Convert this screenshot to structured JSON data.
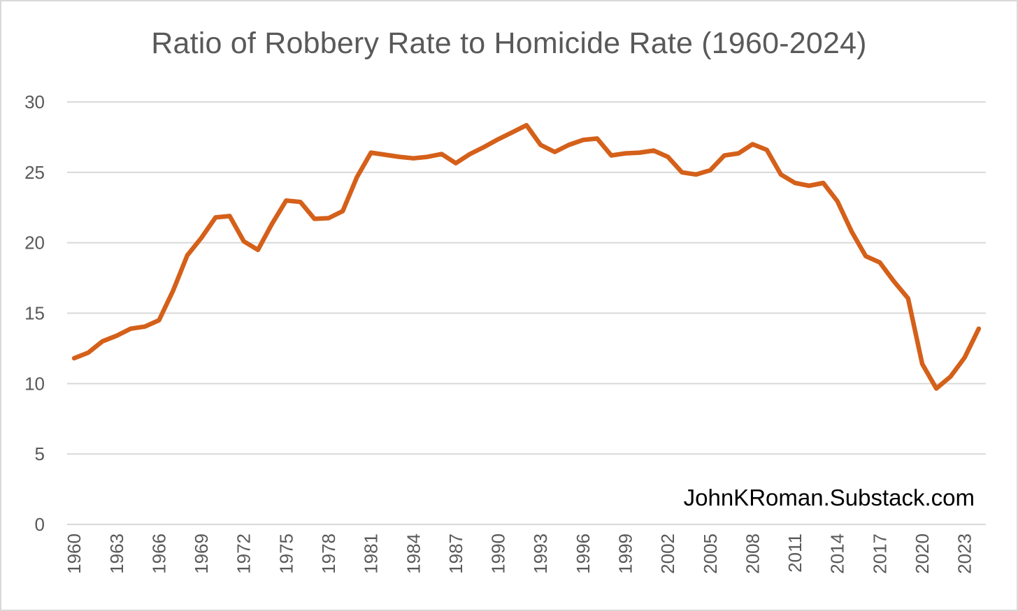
{
  "chart_data": {
    "type": "line",
    "title": "Ratio of Robbery Rate to Homicide Rate (1960-2024)",
    "xlabel": "",
    "ylabel": "",
    "ylim": [
      0,
      30
    ],
    "yticks": [
      0,
      5,
      10,
      15,
      20,
      25,
      30
    ],
    "xtick_labels": [
      "1960",
      "1963",
      "1966",
      "1969",
      "1972",
      "1975",
      "1978",
      "1981",
      "1984",
      "1987",
      "1990",
      "1993",
      "1996",
      "1999",
      "2002",
      "2005",
      "2008",
      "2011",
      "2014",
      "2017",
      "2020",
      "2023"
    ],
    "grid": true,
    "legend": "none",
    "line_color": "#D4601A",
    "x": [
      1960,
      1961,
      1962,
      1963,
      1964,
      1965,
      1966,
      1967,
      1968,
      1969,
      1970,
      1971,
      1972,
      1973,
      1974,
      1975,
      1976,
      1977,
      1978,
      1979,
      1980,
      1981,
      1982,
      1983,
      1984,
      1985,
      1986,
      1987,
      1988,
      1989,
      1990,
      1991,
      1992,
      1993,
      1994,
      1995,
      1996,
      1997,
      1998,
      1999,
      2000,
      2001,
      2002,
      2003,
      2004,
      2005,
      2006,
      2007,
      2008,
      2009,
      2010,
      2011,
      2012,
      2013,
      2014,
      2015,
      2016,
      2017,
      2018,
      2019,
      2020,
      2021,
      2022,
      2023,
      2024
    ],
    "series": [
      {
        "values": [
          11.8,
          12.2,
          13.0,
          13.4,
          13.9,
          14.05,
          14.5,
          16.6,
          19.1,
          20.35,
          21.8,
          21.9,
          20.1,
          19.5,
          21.35,
          23.0,
          22.9,
          21.7,
          21.75,
          22.25,
          24.65,
          26.4,
          26.25,
          26.1,
          26.0,
          26.1,
          26.3,
          25.65,
          26.3,
          26.8,
          27.35,
          27.85,
          28.35,
          26.95,
          26.45,
          26.95,
          27.3,
          27.4,
          26.2,
          26.35,
          26.4,
          26.55,
          26.1,
          25.0,
          24.85,
          25.15,
          26.2,
          26.35,
          27.0,
          26.6,
          24.85,
          24.25,
          24.05,
          24.25,
          22.95,
          20.8,
          19.05,
          18.6,
          17.25,
          16.05,
          11.4,
          9.65,
          10.5,
          11.85,
          13.9
        ]
      }
    ],
    "watermark": "JohnKRoman.Substack.com"
  }
}
